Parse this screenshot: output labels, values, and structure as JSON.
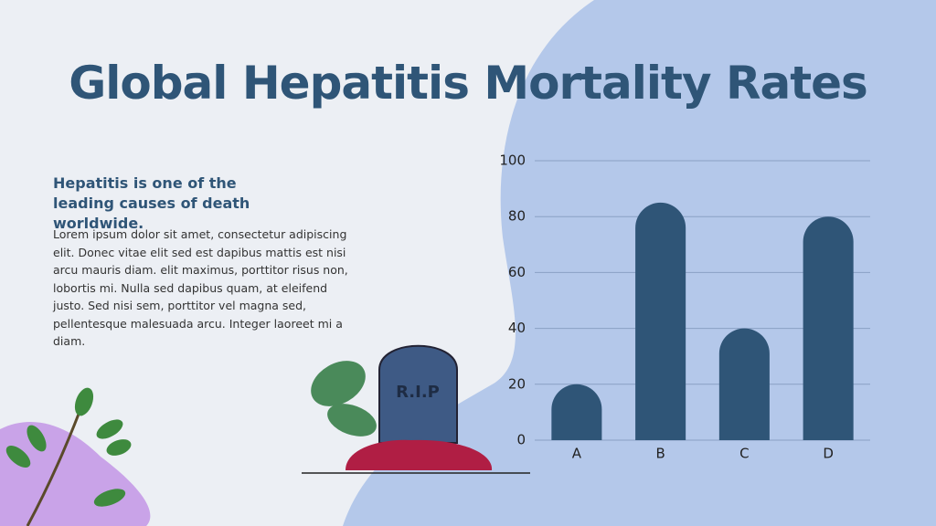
{
  "slide": {
    "heading": "Hepatitis is one of the leading causes of death worldwide.",
    "body": "Lorem ipsum dolor sit amet, consectetur adipiscing elit. Donec vitae elit sed est dapibus mattis est nisi arcu mauris diam. elit maximus, porttitor risus non, lobortis mi. Nulla sed dapibus quam, at eleifend justo. Sed nisi sem, porttitor vel magna sed, pellentesque malesuada arcu. Integer laoreet mi a diam.",
    "tombstone": "R.I.P"
  },
  "chart_data": {
    "type": "bar",
    "title": "Global Hepatitis Mortality Rates",
    "categories": [
      "A",
      "B",
      "C",
      "D"
    ],
    "values": [
      20,
      85,
      40,
      80
    ],
    "color": "#2f5577",
    "ylim": [
      0,
      100
    ],
    "yticks": [
      0,
      20,
      40,
      60,
      80,
      100
    ],
    "grid": true
  }
}
